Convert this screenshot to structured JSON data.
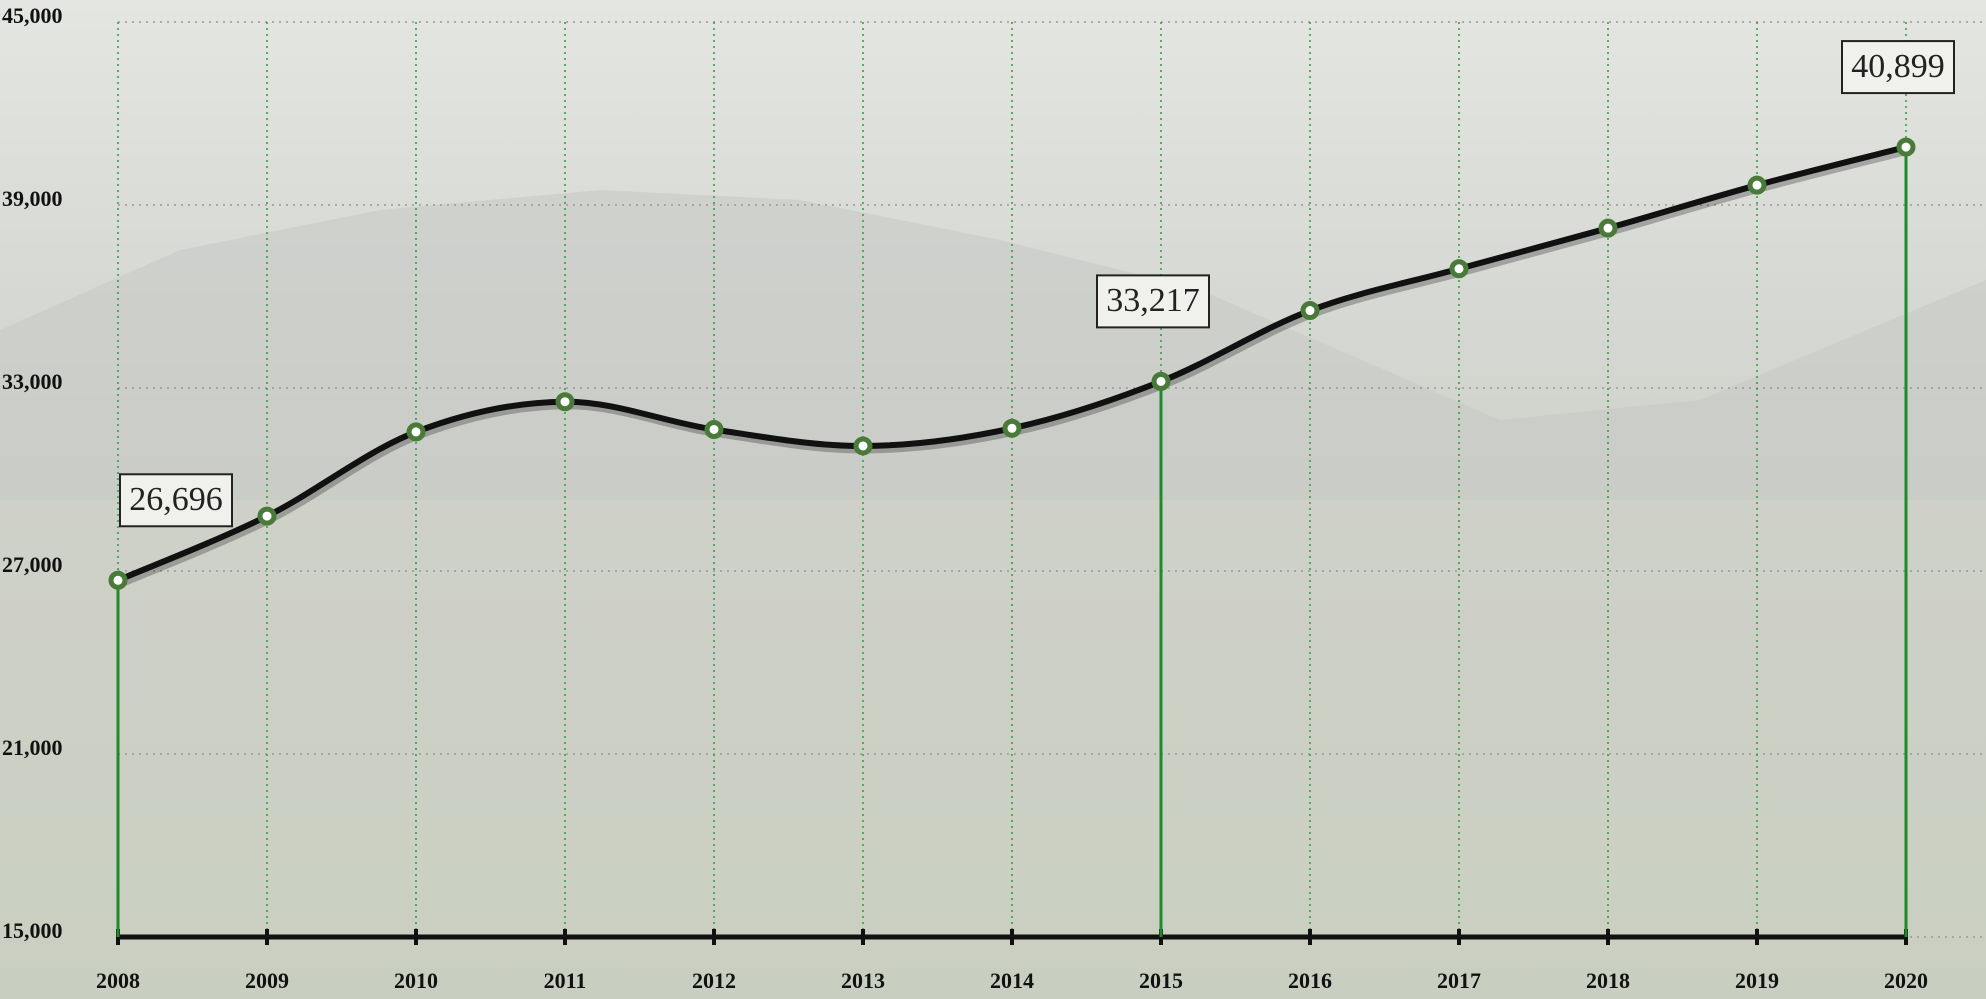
{
  "chart_data": {
    "type": "line",
    "categories": [
      "2008",
      "2009",
      "2010",
      "2011",
      "2012",
      "2013",
      "2014",
      "2015",
      "2016",
      "2017",
      "2018",
      "2019",
      "2020"
    ],
    "series": [
      {
        "color": "#111111",
        "values": [
          26696,
          28800,
          31560,
          32550,
          31640,
          31100,
          31680,
          33217,
          35540,
          36910,
          38240,
          39650,
          40899
        ],
        "value_labels": [
          "26,696",
          null,
          null,
          null,
          null,
          null,
          null,
          "33,217",
          null,
          null,
          null,
          null,
          "40,899"
        ]
      }
    ],
    "ylim": [
      15000,
      45000
    ],
    "yticks": [
      {
        "value": 15000,
        "label": "15,000"
      },
      {
        "value": 21000,
        "label": "21,000"
      },
      {
        "value": 27000,
        "label": "27,000"
      },
      {
        "value": 33000,
        "label": "33,000"
      },
      {
        "value": 39000,
        "label": "39,000"
      },
      {
        "value": 45000,
        "label": "45,000"
      }
    ],
    "grid": true,
    "marker_color": "#4a7a3a",
    "drop_line_color": "#1f8a2a"
  }
}
